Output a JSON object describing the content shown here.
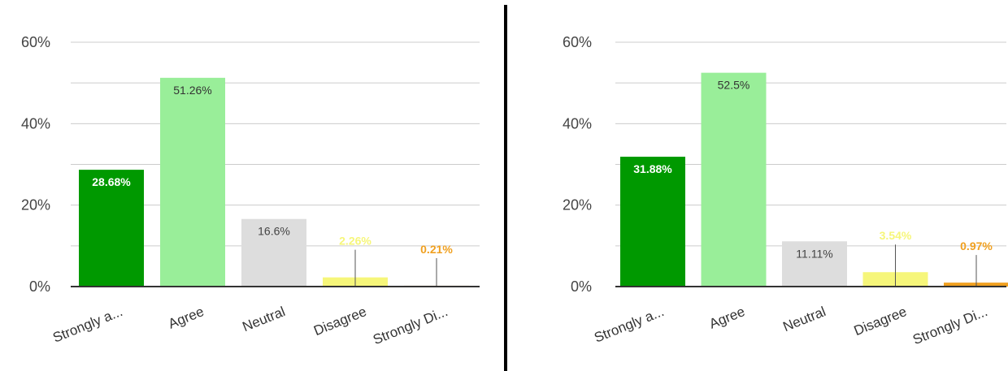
{
  "colors": {
    "strongly_agree": "#009900",
    "agree": "#99ee99",
    "neutral": "#dddddd",
    "disagree": "#f6f67a",
    "strongly_disagree": "#f0a020",
    "axis": "#333333",
    "grid": "#cccccc",
    "divider": "#000000"
  },
  "chart_data": [
    {
      "type": "bar",
      "categories": [
        "Strongly a...",
        "Agree",
        "Neutral",
        "Disagree",
        "Strongly Di..."
      ],
      "values": [
        28.68,
        51.26,
        16.6,
        2.26,
        0.21
      ],
      "data_labels": [
        "28.68%",
        "51.26%",
        "16.6%",
        "2.26%",
        "0.21%"
      ],
      "yticks": [
        "0%",
        "20%",
        "40%",
        "60%"
      ],
      "ylim": [
        0,
        60
      ],
      "grid": true,
      "title": "",
      "xlabel": "",
      "ylabel": ""
    },
    {
      "type": "bar",
      "categories": [
        "Strongly a...",
        "Agree",
        "Neutral",
        "Disagree",
        "Strongly Di..."
      ],
      "values": [
        31.88,
        52.5,
        11.11,
        3.54,
        0.97
      ],
      "data_labels": [
        "31.88%",
        "52.5%",
        "11.11%",
        "3.54%",
        "0.97%"
      ],
      "yticks": [
        "0%",
        "20%",
        "40%",
        "60%"
      ],
      "ylim": [
        0,
        60
      ],
      "grid": true,
      "title": "",
      "xlabel": "",
      "ylabel": ""
    }
  ]
}
